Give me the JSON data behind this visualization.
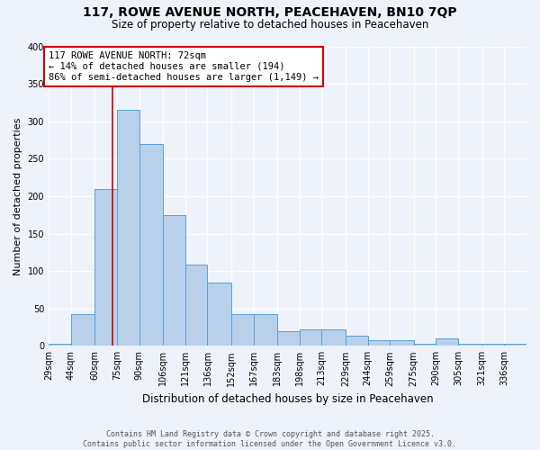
{
  "title1": "117, ROWE AVENUE NORTH, PEACEHAVEN, BN10 7QP",
  "title2": "Size of property relative to detached houses in Peacehaven",
  "xlabel": "Distribution of detached houses by size in Peacehaven",
  "ylabel": "Number of detached properties",
  "bin_labels": [
    "29sqm",
    "44sqm",
    "60sqm",
    "75sqm",
    "90sqm",
    "106sqm",
    "121sqm",
    "136sqm",
    "152sqm",
    "167sqm",
    "183sqm",
    "198sqm",
    "213sqm",
    "229sqm",
    "244sqm",
    "259sqm",
    "275sqm",
    "290sqm",
    "305sqm",
    "321sqm",
    "336sqm"
  ],
  "bin_edges": [
    29,
    44,
    60,
    75,
    90,
    106,
    121,
    136,
    152,
    167,
    183,
    198,
    213,
    229,
    244,
    259,
    275,
    290,
    305,
    321,
    336,
    351
  ],
  "counts": [
    3,
    43,
    210,
    315,
    270,
    175,
    108,
    85,
    43,
    43,
    20,
    22,
    22,
    13,
    8,
    8,
    3,
    10,
    3,
    3,
    3
  ],
  "bar_color": "#b8d0ea",
  "bar_edge_color": "#5a9fd4",
  "vline_x": 72,
  "vline_color": "#cc0000",
  "annotation_text": "117 ROWE AVENUE NORTH: 72sqm\n← 14% of detached houses are smaller (194)\n86% of semi-detached houses are larger (1,149) →",
  "annotation_box_color": "#ffffff",
  "annotation_box_edge": "#cc0000",
  "ylim": [
    0,
    400
  ],
  "yticks": [
    0,
    50,
    100,
    150,
    200,
    250,
    300,
    350,
    400
  ],
  "footer1": "Contains HM Land Registry data © Crown copyright and database right 2025.",
  "footer2": "Contains public sector information licensed under the Open Government Licence v3.0.",
  "bg_color": "#eef2fa",
  "grid_color": "#ffffff",
  "title_fontsize": 10,
  "subtitle_fontsize": 8.5,
  "ylabel_fontsize": 8,
  "xlabel_fontsize": 8.5,
  "tick_fontsize": 7,
  "annotation_fontsize": 7.5,
  "footer_fontsize": 6
}
